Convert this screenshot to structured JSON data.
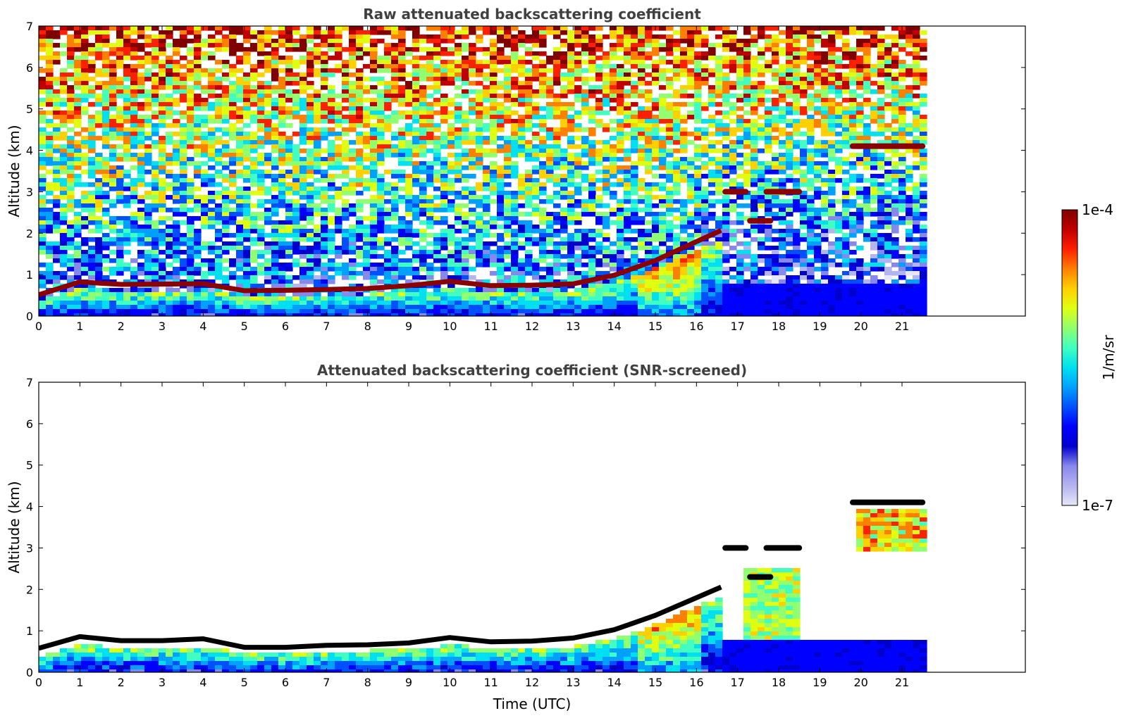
{
  "chart_data": [
    {
      "type": "heatmap",
      "title": "Raw attenuated backscattering coefficient",
      "xlabel": "",
      "ylabel": "Altitude (km)",
      "xlim": [
        0,
        24
      ],
      "ylim": [
        0,
        7
      ],
      "x_ticks": [
        "0",
        "1",
        "2",
        "3",
        "4",
        "5",
        "6",
        "7",
        "8",
        "9",
        "10",
        "11",
        "12",
        "13",
        "14",
        "15",
        "16",
        "17",
        "18",
        "19",
        "20",
        "21"
      ],
      "y_ticks": [
        "0",
        "1",
        "2",
        "3",
        "4",
        "5",
        "6",
        "7"
      ],
      "data_extent_hours": [
        0,
        21.5
      ],
      "colormap": "jet",
      "log_scale": true,
      "noise": "strong noise at all altitudes",
      "layers": {
        "cloud_top_km": [
          [
            0,
            0.55
          ],
          [
            1,
            0.85
          ],
          [
            2,
            0.75
          ],
          [
            3,
            0.75
          ],
          [
            4,
            0.8
          ],
          [
            5,
            0.6
          ],
          [
            6,
            0.6
          ],
          [
            7,
            0.65
          ],
          [
            8,
            0.7
          ],
          [
            9,
            0.7
          ],
          [
            10,
            0.85
          ],
          [
            11,
            0.7
          ],
          [
            12,
            0.75
          ],
          [
            13,
            0.8
          ],
          [
            14,
            1.0
          ],
          [
            15,
            1.35
          ],
          [
            16,
            1.8
          ],
          [
            16.6,
            2.05
          ]
        ],
        "elevated_cloud_km": [
          {
            "t0": 16.7,
            "t1": 17.2,
            "alt": 3.0
          },
          {
            "t0": 17.7,
            "t1": 18.5,
            "alt": 3.0
          },
          {
            "t0": 17.3,
            "t1": 17.8,
            "alt": 2.3
          },
          {
            "t0": 19.8,
            "t1": 21.5,
            "alt": 4.1
          }
        ]
      }
    },
    {
      "type": "heatmap",
      "title": "Attenuated backscattering coefficient (SNR-screened)",
      "xlabel": "Time (UTC)",
      "ylabel": "Altitude (km)",
      "xlim": [
        0,
        24
      ],
      "ylim": [
        0,
        7
      ],
      "x_ticks": [
        "0",
        "1",
        "2",
        "3",
        "4",
        "5",
        "6",
        "7",
        "8",
        "9",
        "10",
        "11",
        "12",
        "13",
        "14",
        "15",
        "16",
        "17",
        "18",
        "19",
        "20",
        "21"
      ],
      "y_ticks": [
        "0",
        "1",
        "2",
        "3",
        "4",
        "5",
        "6",
        "7"
      ],
      "data_extent_hours": [
        0,
        21.5
      ],
      "colormap": "jet",
      "log_scale": true,
      "noise": "low-SNR pixels removed",
      "saturated_color": "#000000",
      "layers": {
        "cloud_top_km": [
          [
            0,
            0.55
          ],
          [
            1,
            0.85
          ],
          [
            2,
            0.75
          ],
          [
            3,
            0.75
          ],
          [
            4,
            0.8
          ],
          [
            5,
            0.6
          ],
          [
            6,
            0.6
          ],
          [
            7,
            0.65
          ],
          [
            8,
            0.7
          ],
          [
            9,
            0.7
          ],
          [
            10,
            0.85
          ],
          [
            11,
            0.7
          ],
          [
            12,
            0.75
          ],
          [
            13,
            0.8
          ],
          [
            14,
            1.0
          ],
          [
            15,
            1.35
          ],
          [
            16,
            1.8
          ],
          [
            16.6,
            2.05
          ]
        ],
        "elevated_cloud_km": [
          {
            "t0": 16.7,
            "t1": 17.2,
            "alt": 3.0
          },
          {
            "t0": 17.7,
            "t1": 18.5,
            "alt": 3.0
          },
          {
            "t0": 17.3,
            "t1": 17.8,
            "alt": 2.3
          },
          {
            "t0": 19.8,
            "t1": 21.5,
            "alt": 4.1
          }
        ]
      }
    }
  ],
  "colorbar": {
    "label": "1/m/sr",
    "max_label": "1e-4",
    "min_label": "1e-7",
    "range": [
      1e-07,
      0.0001
    ],
    "scale": "log",
    "colors": [
      "#e6e6f8",
      "#b4b4f0",
      "#8888ec",
      "#0000cd",
      "#0000ff",
      "#0050ff",
      "#00a0ff",
      "#00e0f0",
      "#40ffc0",
      "#90ff70",
      "#e0ff10",
      "#ffd000",
      "#ff8000",
      "#ff2000",
      "#c00000",
      "#800000"
    ]
  }
}
